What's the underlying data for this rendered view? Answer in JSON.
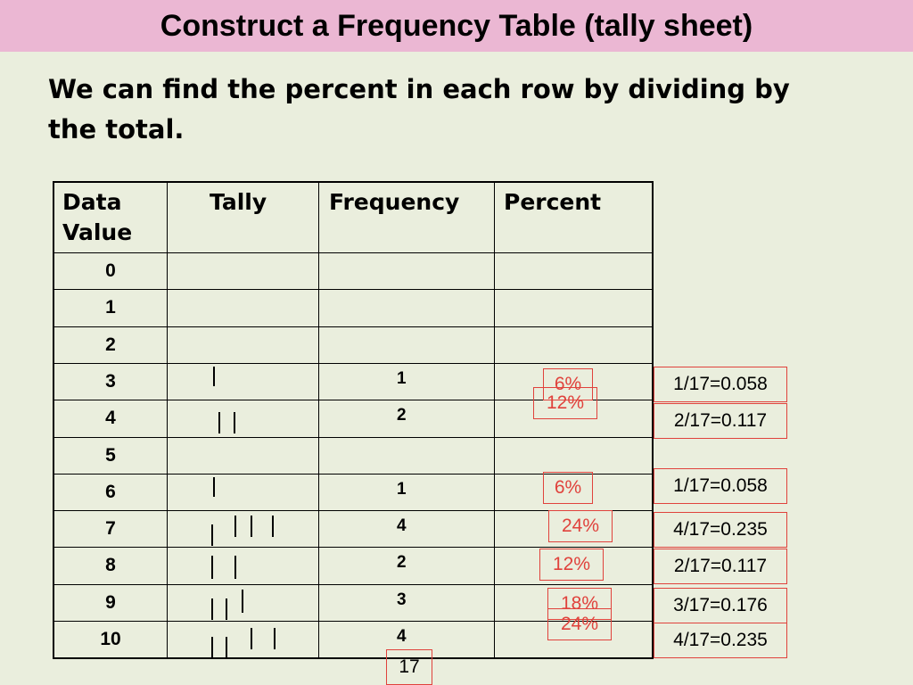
{
  "title": "Construct a Frequency Table (tally sheet)",
  "lead": {
    "line1": "We can find the percent in each row by dividing by",
    "line2": "the total."
  },
  "table": {
    "headers": {
      "data_value_line1": "Data",
      "data_value_line2": "Value",
      "tally": "Tally",
      "frequency": "Frequency",
      "percent": "Percent"
    },
    "rows": [
      {
        "value": "0",
        "tally": 0,
        "frequency": "",
        "percent": "",
        "calc": ""
      },
      {
        "value": "1",
        "tally": 0,
        "frequency": "",
        "percent": "",
        "calc": ""
      },
      {
        "value": "2",
        "tally": 0,
        "frequency": "",
        "percent": "",
        "calc": ""
      },
      {
        "value": "3",
        "tally": 1,
        "frequency": "1",
        "percent": "6%",
        "calc": "1/17=0.058"
      },
      {
        "value": "4",
        "tally": 2,
        "frequency": "2",
        "percent": "12%",
        "calc": "2/17=0.117"
      },
      {
        "value": "5",
        "tally": 0,
        "frequency": "",
        "percent": "",
        "calc": ""
      },
      {
        "value": "6",
        "tally": 1,
        "frequency": "1",
        "percent": "6%",
        "calc": "1/17=0.058"
      },
      {
        "value": "7",
        "tally": 4,
        "frequency": "4",
        "percent": "24%",
        "calc": "4/17=0.235"
      },
      {
        "value": "8",
        "tally": 2,
        "frequency": "2",
        "percent": "12%",
        "calc": "2/17=0.117"
      },
      {
        "value": "9",
        "tally": 3,
        "frequency": "3",
        "percent": "18%",
        "calc": "3/17=0.176"
      },
      {
        "value": "10",
        "tally": 4,
        "frequency": "4",
        "percent": "24%",
        "calc": "4/17=0.235"
      }
    ]
  },
  "total": "17",
  "colors": {
    "title_bar": "#ebb7d3",
    "background": "#eaeedd",
    "annotation_border": "#e0423c",
    "percent_text": "#e0423c"
  }
}
